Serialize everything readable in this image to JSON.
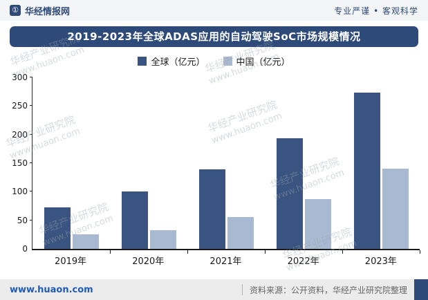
{
  "header": {
    "brand": "华经情报网",
    "logo_glyph": "①",
    "slogan": "专业严谨 • 客观科学"
  },
  "title_banner": "2019-2023年全球ADAS应用的自动驾驶SoC市场规模情况",
  "watermark": {
    "brand": "华经产业研究院",
    "url": "www.huaon.com"
  },
  "footer": {
    "website": "www.huaon.com",
    "source_label": "资料来源：公开资料，华经产业研究院整理"
  },
  "colors": {
    "primary": "#2e4a78",
    "series_global": "#3a5481",
    "series_china": "#a9b9d2",
    "footer_bg": "#ececec"
  },
  "chart_data": {
    "type": "bar",
    "title": "2019-2023年全球ADAS应用的自动驾驶SoC市场规模情况",
    "categories": [
      "2019年",
      "2020年",
      "2021年",
      "2022年",
      "2023年"
    ],
    "series": [
      {
        "name": "全球（亿元）",
        "color": "#3a5481",
        "values": [
          73,
          101,
          139,
          194,
          274
        ]
      },
      {
        "name": "中国（亿元）",
        "color": "#a9b9d2",
        "values": [
          25,
          33,
          56,
          87,
          140
        ]
      }
    ],
    "ylim": [
      0,
      300
    ],
    "yticks": [
      0,
      50,
      100,
      150,
      200,
      250,
      300
    ],
    "grid": false,
    "legend_position": "top"
  }
}
